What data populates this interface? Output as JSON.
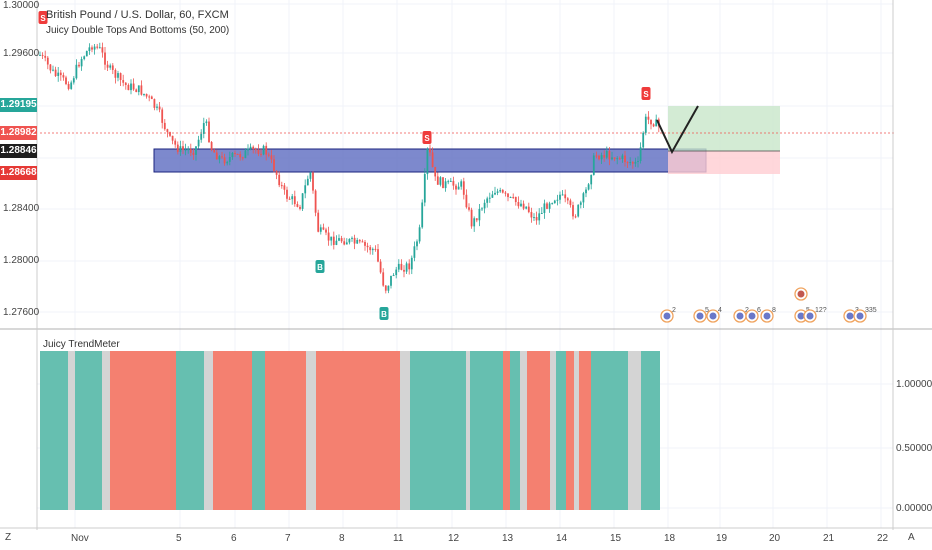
{
  "header": {
    "symbol_title": "British Pound / U.S. Dollar, 60, FXCM",
    "indicator_title": "Juicy Double Tops And Bottoms (50, 200)"
  },
  "sub_panel": {
    "title": "Juicy TrendMeter",
    "right_ticks": [
      "1.00000",
      "0.50000",
      "0.00000"
    ]
  },
  "price_axis": {
    "ticks": [
      "1.30000",
      "1.29600",
      "1.28400",
      "1.28000",
      "1.27600"
    ],
    "boxes": [
      {
        "value": "1.29195",
        "color": "#26a69a"
      },
      {
        "value": "1.28982",
        "color": "#ef5350"
      },
      {
        "value": "1.28846",
        "color": "#1e1e1e"
      },
      {
        "value": "1.28668",
        "color": "#e53935"
      }
    ]
  },
  "time_axis": {
    "labels": [
      "Nov",
      "5",
      "6",
      "7",
      "8",
      "11",
      "12",
      "13",
      "14",
      "15",
      "18",
      "19",
      "20",
      "21",
      "22"
    ]
  },
  "bottom_bar": {
    "left_icon_label": "Z",
    "right_icon_label": "A"
  },
  "signals": [
    {
      "type": "S"
    },
    {
      "type": "S"
    },
    {
      "type": "S"
    },
    {
      "type": "B"
    },
    {
      "type": "B"
    }
  ],
  "events": [
    "2",
    "5",
    "4",
    "2",
    "6",
    "8",
    "5",
    "12?",
    "3",
    "335"
  ],
  "colors": {
    "up": "#26a69a",
    "down": "#ef5350",
    "zone_fill": "#5c6bc0",
    "zone_border": "#1a237e",
    "target_fill": "#c8e6c9",
    "stop_fill": "#ffcdd2",
    "trend_green": "#66bfb0",
    "trend_red": "#f48070",
    "trend_grey": "#d4d4d4"
  }
}
